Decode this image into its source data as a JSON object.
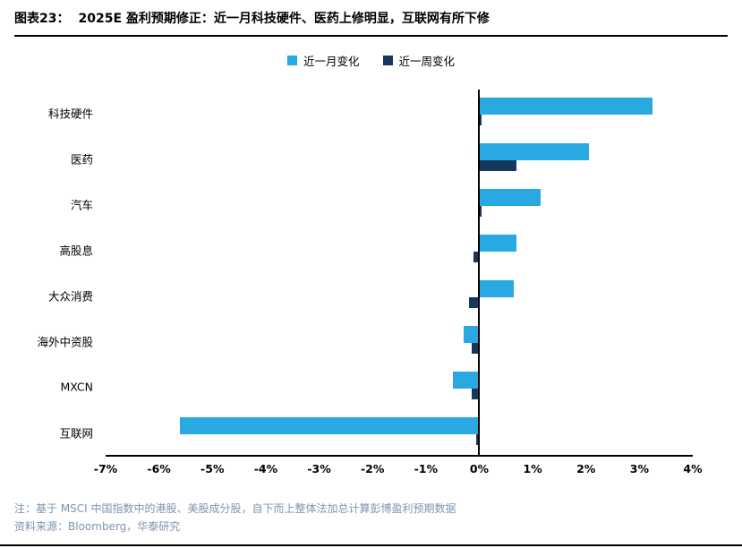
{
  "header": {
    "chart_label": "图表23：",
    "title": "2025E 盈利预期修正：近一月科技硬件、医药上修明显，互联网有所下修"
  },
  "chart_data": {
    "type": "bar",
    "orientation": "horizontal",
    "title": "2025E 盈利预期修正：近一月科技硬件、医药上修明显，互联网有所下修",
    "categories": [
      "科技硬件",
      "医药",
      "汽车",
      "高股息",
      "大众消费",
      "海外中资股",
      "MXCN",
      "互联网"
    ],
    "series": [
      {
        "name": "近一月变化",
        "color": "#29a9e1",
        "values": [
          3.25,
          2.05,
          1.15,
          0.7,
          0.65,
          -0.3,
          -0.5,
          -5.6
        ]
      },
      {
        "name": "近一周变化",
        "color": "#17375e",
        "values": [
          0.05,
          0.7,
          0.05,
          -0.1,
          -0.2,
          -0.15,
          -0.15,
          -0.05
        ]
      }
    ],
    "xlim": [
      -7,
      4
    ],
    "x_ticks": [
      -7,
      -6,
      -5,
      -4,
      -3,
      -2,
      -1,
      0,
      1,
      2,
      3,
      4
    ],
    "x_tick_suffix": "%",
    "xlabel": "",
    "ylabel": "",
    "legend_position": "top",
    "grid": false
  },
  "footer": {
    "note": "注：基于 MSCI 中国指数中的港股、美股成分股，自下而上整体法加总计算彭博盈利预期数据",
    "source": "资料来源：Bloomberg，华泰研究"
  }
}
